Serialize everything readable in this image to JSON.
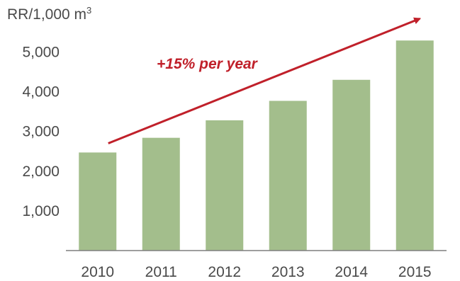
{
  "chart_data": {
    "type": "bar",
    "title": "",
    "unit_label": {
      "base": "RR/1,000 m",
      "superscript": "3"
    },
    "xlabel": "",
    "ylabel": "RR/1,000 m3",
    "categories": [
      "2010",
      "2011",
      "2012",
      "2013",
      "2014",
      "2015"
    ],
    "series": [
      {
        "values": [
          2470,
          2840,
          3280,
          3770,
          4300,
          5290
        ]
      }
    ],
    "y_ticks": [
      1000,
      2000,
      3000,
      4000,
      5000
    ],
    "y_tick_labels": [
      "1,000",
      "2,000",
      "3,000",
      "4,000",
      "5,000"
    ],
    "ylim": [
      0,
      5600
    ],
    "grid": false,
    "legend": "none",
    "annotation": {
      "text": "+15% per year",
      "color": "#c0202a",
      "arrow_from": {
        "x": "2010",
        "y": 2700
      },
      "arrow_to": {
        "x": "2015",
        "y": 5840
      }
    },
    "bar_color": "#a3be8c",
    "text_color": "#4a4a4a",
    "axis_color": "#7f7f7f"
  }
}
